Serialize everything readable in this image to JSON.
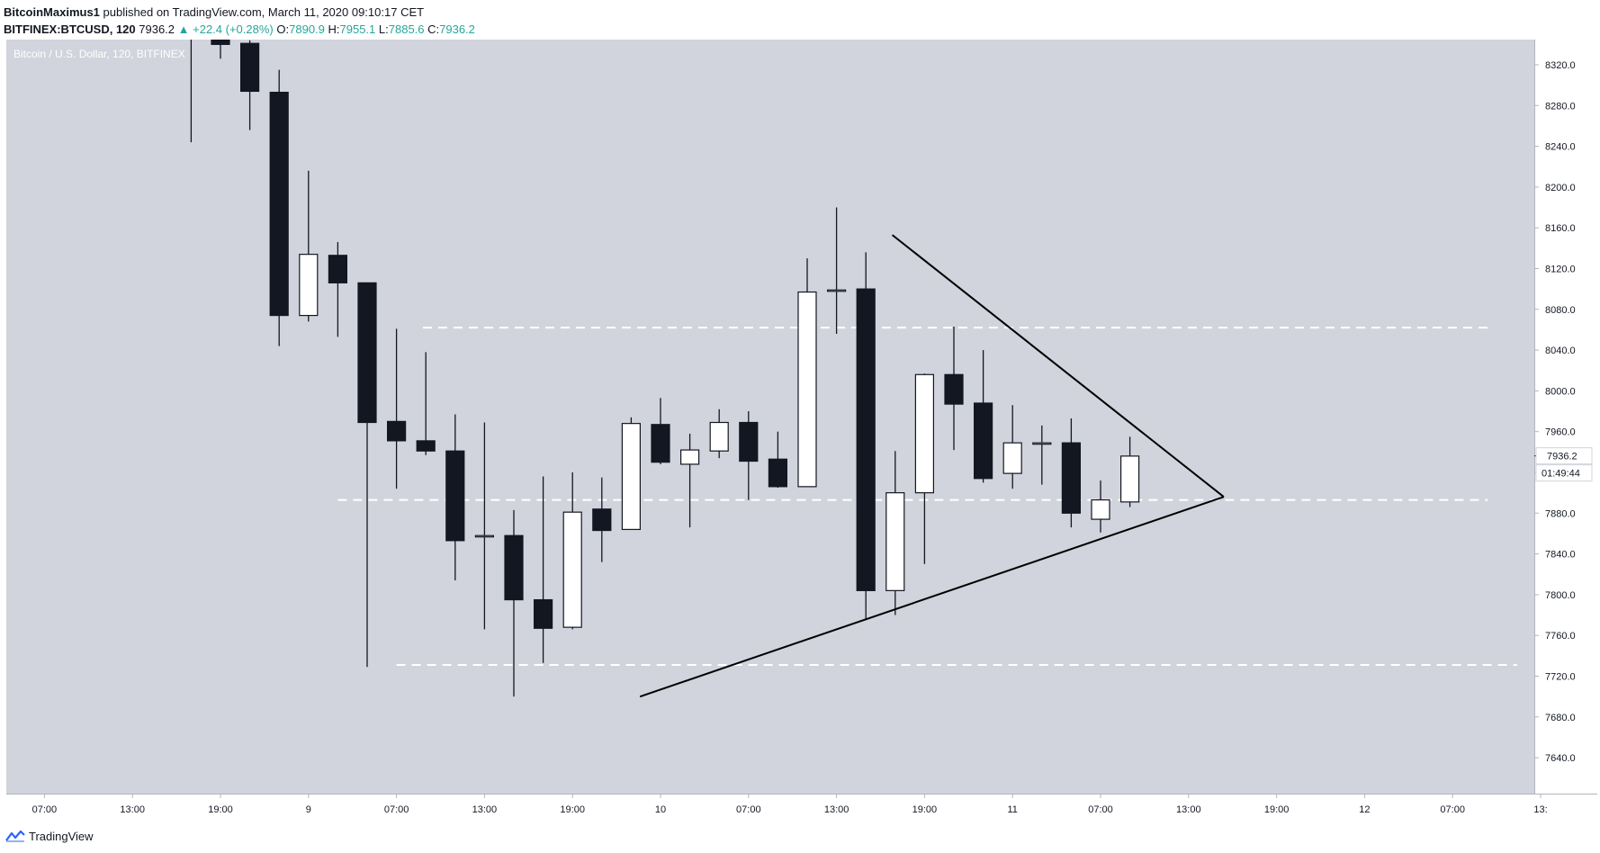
{
  "header": {
    "author": "BitcoinMaximus1",
    "published_text": "published on TradingView.com, March 11, 2020 09:10:17 CET",
    "symbol": "BITFINEX:BTCUSD, 120",
    "last": "7936.2",
    "change": "▲ +22.4 (+0.28%)",
    "o_label": "O:",
    "o_value": "7890.9",
    "h_label": "H:",
    "h_value": "7955.1",
    "l_label": "L:",
    "l_value": "7885.6",
    "c_label": "C:",
    "c_value": "7936.2"
  },
  "footer": {
    "brand": "TradingView",
    "logo_icon": "tradingview-logo-icon"
  },
  "chart_data": {
    "type": "candlestick",
    "title": "Bitcoin / U.S. Dollar, 120, BITFINEX",
    "ylim": [
      7600,
      8340
    ],
    "y_ticks": [
      "8320.0",
      "8280.0",
      "8240.0",
      "8200.0",
      "8160.0",
      "8120.0",
      "8080.0",
      "8040.0",
      "8000.0",
      "7960.0",
      "7920.0",
      "7880.0",
      "7840.0",
      "7800.0",
      "7760.0",
      "7720.0",
      "7680.0",
      "7640.0"
    ],
    "x_ticks": [
      {
        "label": "07:00",
        "bar": -6
      },
      {
        "label": "13:00",
        "bar": -3
      },
      {
        "label": "19:00",
        "bar": 0
      },
      {
        "label": "9",
        "bar": 3
      },
      {
        "label": "07:00",
        "bar": 6
      },
      {
        "label": "13:00",
        "bar": 9
      },
      {
        "label": "19:00",
        "bar": 12
      },
      {
        "label": "10",
        "bar": 15
      },
      {
        "label": "07:00",
        "bar": 18
      },
      {
        "label": "13:00",
        "bar": 21
      },
      {
        "label": "19:00",
        "bar": 24
      },
      {
        "label": "11",
        "bar": 27
      },
      {
        "label": "07:00",
        "bar": 30
      },
      {
        "label": "13:00",
        "bar": 33
      },
      {
        "label": "19:00",
        "bar": 36
      },
      {
        "label": "12",
        "bar": 39
      },
      {
        "label": "07:00",
        "bar": 42
      },
      {
        "label": "13:",
        "bar": 45
      }
    ],
    "candles": [
      {
        "t": "Mar 8 17:00",
        "o": 8400,
        "h": 8420,
        "l": 8244,
        "c": 8390
      },
      {
        "t": "Mar 8 19:00",
        "o": 8350,
        "h": 8360,
        "l": 8326,
        "c": 8340
      },
      {
        "t": "Mar 8 21:00",
        "o": 8341,
        "h": 8344,
        "l": 8256,
        "c": 8294
      },
      {
        "t": "Mar 8 23:00",
        "o": 8293,
        "h": 8315,
        "l": 8044,
        "c": 8074
      },
      {
        "t": "Mar 9 01:00",
        "o": 8074,
        "h": 8216,
        "l": 8068,
        "c": 8134
      },
      {
        "t": "Mar 9 03:00",
        "o": 8133,
        "h": 8146,
        "l": 8053,
        "c": 8106
      },
      {
        "t": "Mar 9 05:00",
        "o": 8106,
        "h": 8106,
        "l": 7729,
        "c": 7969
      },
      {
        "t": "Mar 9 07:00",
        "o": 7970,
        "h": 8061,
        "l": 7904,
        "c": 7951
      },
      {
        "t": "Mar 9 09:00",
        "o": 7951,
        "h": 8038,
        "l": 7937,
        "c": 7941
      },
      {
        "t": "Mar 9 11:00",
        "o": 7941,
        "h": 7977,
        "l": 7814,
        "c": 7853
      },
      {
        "t": "Mar 9 13:00",
        "o": 7858,
        "h": 7969,
        "l": 7766,
        "c": 7858
      },
      {
        "t": "Mar 9 15:00",
        "o": 7858,
        "h": 7883,
        "l": 7700,
        "c": 7795
      },
      {
        "t": "Mar 9 17:00",
        "o": 7795,
        "h": 7916,
        "l": 7733,
        "c": 7767
      },
      {
        "t": "Mar 9 19:00",
        "o": 7768,
        "h": 7920,
        "l": 7766,
        "c": 7881
      },
      {
        "t": "Mar 9 21:00",
        "o": 7884,
        "h": 7915,
        "l": 7832,
        "c": 7863
      },
      {
        "t": "Mar 9 23:00",
        "o": 7864,
        "h": 7974,
        "l": 7864,
        "c": 7968
      },
      {
        "t": "Mar 10 01:00",
        "o": 7967,
        "h": 7993,
        "l": 7928,
        "c": 7930
      },
      {
        "t": "Mar 10 03:00",
        "o": 7928,
        "h": 7958,
        "l": 7866,
        "c": 7942
      },
      {
        "t": "Mar 10 05:00",
        "o": 7941,
        "h": 7982,
        "l": 7934,
        "c": 7969
      },
      {
        "t": "Mar 10 07:00",
        "o": 7969,
        "h": 7980,
        "l": 7893,
        "c": 7931
      },
      {
        "t": "Mar 10 09:00",
        "o": 7933,
        "h": 7960,
        "l": 7905,
        "c": 7906
      },
      {
        "t": "Mar 10 11:00",
        "o": 7906,
        "h": 8130,
        "l": 7906,
        "c": 8097
      },
      {
        "t": "Mar 10 13:00",
        "o": 8098,
        "h": 8180,
        "l": 8056,
        "c": 8099
      },
      {
        "t": "Mar 10 15:00",
        "o": 8100,
        "h": 8136,
        "l": 7776,
        "c": 7804
      },
      {
        "t": "Mar 10 17:00",
        "o": 7804,
        "h": 7941,
        "l": 7780,
        "c": 7900
      },
      {
        "t": "Mar 10 19:00",
        "o": 7900,
        "h": 8017,
        "l": 7830,
        "c": 8016
      },
      {
        "t": "Mar 10 21:00",
        "o": 8016,
        "h": 8063,
        "l": 7942,
        "c": 7987
      },
      {
        "t": "Mar 10 23:00",
        "o": 7988,
        "h": 8040,
        "l": 7910,
        "c": 7914
      },
      {
        "t": "Mar 11 01:00",
        "o": 7919,
        "h": 7986,
        "l": 7904,
        "c": 7949
      },
      {
        "t": "Mar 11 03:00",
        "o": 7949,
        "h": 7966,
        "l": 7908,
        "c": 7949
      },
      {
        "t": "Mar 11 05:00",
        "o": 7949,
        "h": 7973,
        "l": 7866,
        "c": 7880
      },
      {
        "t": "Mar 11 07:00",
        "o": 7874,
        "h": 7912,
        "l": 7861,
        "c": 7893
      },
      {
        "t": "Mar 11 09:00",
        "o": 7891,
        "h": 7955,
        "l": 7886,
        "c": 7936
      }
    ],
    "price_label": "7936.2",
    "countdown_label": "01:49:44",
    "trendlines": [
      {
        "kind": "resistance",
        "from": {
          "bar": 22.9,
          "price": 8153
        },
        "to": {
          "bar": 34.2,
          "price": 7896
        }
      },
      {
        "kind": "support",
        "from": {
          "bar": 14.3,
          "price": 7700
        },
        "to": {
          "bar": 34.2,
          "price": 7896
        }
      }
    ],
    "horizontal_levels": [
      {
        "price": 8062,
        "from_bar": 6.9,
        "to_bar": 43.2
      },
      {
        "price": 7893,
        "from_bar": 4.0,
        "to_bar": 43.2
      },
      {
        "price": 7731,
        "from_bar": 6.0,
        "to_bar": 44.2
      }
    ]
  },
  "colors": {
    "background": "#d1d4dc",
    "bear_body": "#131722",
    "bull_body": "#ffffff",
    "wick": "#131722",
    "level_dash": "#ffffff",
    "axis_text": "#131722",
    "watermark": "#ffffff"
  }
}
